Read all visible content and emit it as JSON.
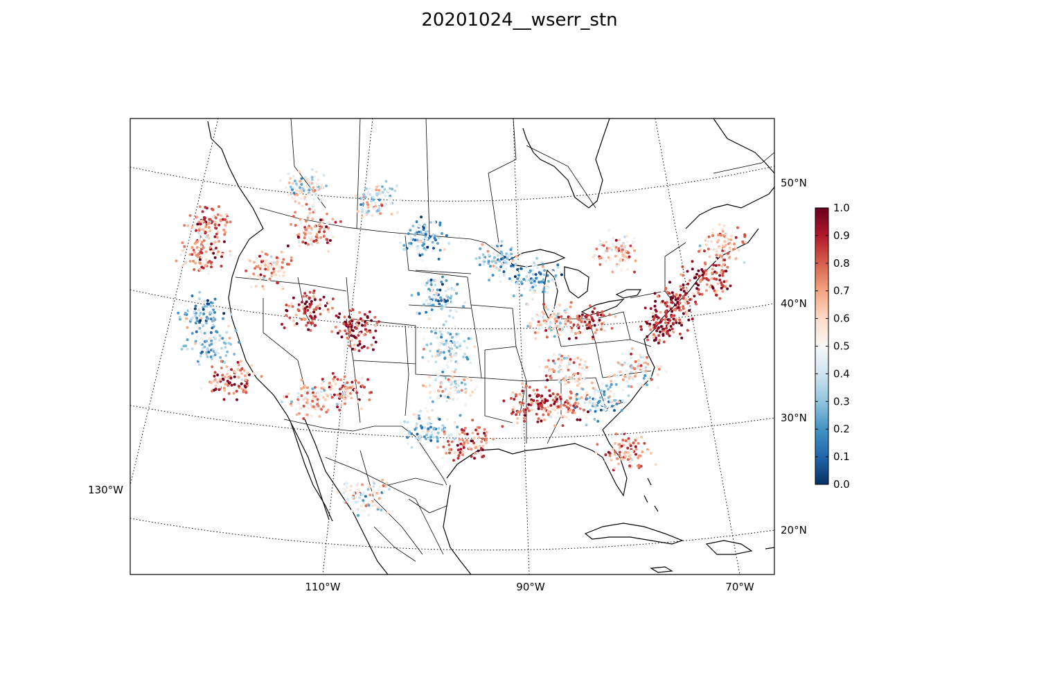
{
  "title": "20201024__wserr_stn",
  "map": {
    "meridian_labels": [
      "110°W",
      "90°W",
      "70°W"
    ],
    "west_label": "130°W",
    "parallel_labels": [
      "50°N",
      "40°N",
      "30°N",
      "20°N"
    ]
  },
  "colorbar": {
    "min": 0.0,
    "max": 1.0,
    "colormap": "RdBu_r",
    "ticks": [
      "1.0",
      "0.9",
      "0.8",
      "0.7",
      "0.6",
      "0.5",
      "0.4",
      "0.3",
      "0.2",
      "0.1",
      "0.0"
    ],
    "colors": [
      "#053061",
      "#2166ac",
      "#4393c3",
      "#92c5de",
      "#d1e5f0",
      "#f7f7f7",
      "#fddbc7",
      "#f4a582",
      "#d6604d",
      "#b2182b",
      "#67001f"
    ]
  },
  "chart_data": {
    "type": "scatter",
    "title": "20201024__wserr_stn",
    "color_range": [
      0.0,
      1.0
    ],
    "regions": [
      {
        "lon": -123.0,
        "lat": 46.5,
        "value": 0.75
      },
      {
        "lon": -122.5,
        "lat": 44.0,
        "value": 0.7
      },
      {
        "lon": -121.5,
        "lat": 39.0,
        "value": 0.3
      },
      {
        "lon": -120.0,
        "lat": 36.5,
        "value": 0.35
      },
      {
        "lon": -117.5,
        "lat": 34.0,
        "value": 0.8
      },
      {
        "lon": -116.0,
        "lat": 43.5,
        "value": 0.65
      },
      {
        "lon": -112.0,
        "lat": 47.0,
        "value": 0.7
      },
      {
        "lon": -111.5,
        "lat": 40.5,
        "value": 0.85
      },
      {
        "lon": -106.5,
        "lat": 39.0,
        "value": 0.9
      },
      {
        "lon": -107.0,
        "lat": 34.0,
        "value": 0.7
      },
      {
        "lon": -110.5,
        "lat": 33.0,
        "value": 0.6
      },
      {
        "lon": -101.0,
        "lat": 47.0,
        "value": 0.3
      },
      {
        "lon": -99.0,
        "lat": 42.0,
        "value": 0.3
      },
      {
        "lon": -98.0,
        "lat": 38.0,
        "value": 0.4
      },
      {
        "lon": -97.5,
        "lat": 34.5,
        "value": 0.5
      },
      {
        "lon": -99.0,
        "lat": 31.0,
        "value": 0.35
      },
      {
        "lon": -95.5,
        "lat": 29.8,
        "value": 0.75
      },
      {
        "lon": -93.0,
        "lat": 45.0,
        "value": 0.35
      },
      {
        "lon": -89.5,
        "lat": 43.5,
        "value": 0.3
      },
      {
        "lon": -88.0,
        "lat": 40.0,
        "value": 0.55
      },
      {
        "lon": -84.5,
        "lat": 39.8,
        "value": 0.8
      },
      {
        "lon": -86.5,
        "lat": 35.8,
        "value": 0.6
      },
      {
        "lon": -90.0,
        "lat": 33.0,
        "value": 0.8
      },
      {
        "lon": -86.8,
        "lat": 32.8,
        "value": 0.75
      },
      {
        "lon": -83.5,
        "lat": 33.0,
        "value": 0.35
      },
      {
        "lon": -81.5,
        "lat": 28.5,
        "value": 0.7
      },
      {
        "lon": -80.0,
        "lat": 35.5,
        "value": 0.55
      },
      {
        "lon": -77.5,
        "lat": 39.0,
        "value": 0.9
      },
      {
        "lon": -75.5,
        "lat": 41.0,
        "value": 0.85
      },
      {
        "lon": -72.5,
        "lat": 42.5,
        "value": 0.85
      },
      {
        "lon": -70.5,
        "lat": 45.0,
        "value": 0.65
      },
      {
        "lon": -81.0,
        "lat": 45.5,
        "value": 0.6
      },
      {
        "lon": -114.0,
        "lat": 50.5,
        "value": 0.5
      },
      {
        "lon": -106.0,
        "lat": 50.0,
        "value": 0.45
      },
      {
        "lon": -104.0,
        "lat": 25.0,
        "value": 0.5
      }
    ]
  }
}
